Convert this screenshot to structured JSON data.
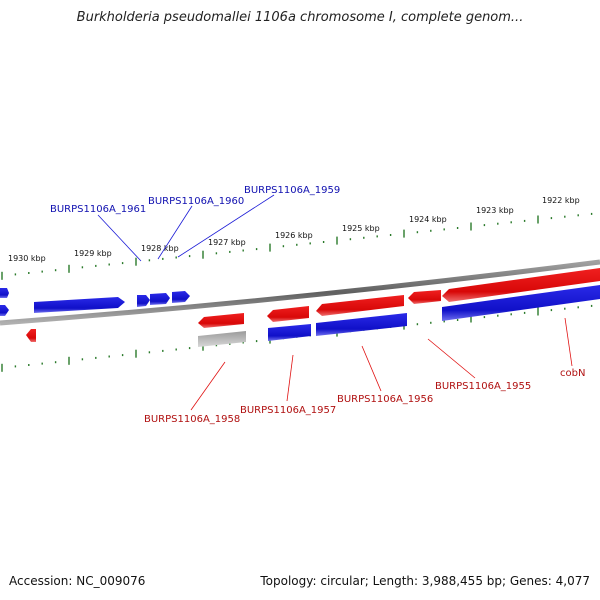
{
  "header": {
    "title": "Burkholderia pseudomallei 1106a chromosome I, complete genom..."
  },
  "footer": {
    "accession": "Accession: NC_009076",
    "topology": "Topology: circular; Length: 3,988,455 bp; Genes: 4,077"
  },
  "ruler": {
    "labels": [
      "1930 kbp",
      "1929 kbp",
      "1928 kbp",
      "1927 kbp",
      "1926 kbp",
      "1925 kbp",
      "1924 kbp",
      "1923 kbp",
      "1922 kbp"
    ]
  },
  "genes": {
    "labels": [
      {
        "name": "BURPS1106A_1961",
        "strand": "forward"
      },
      {
        "name": "BURPS1106A_1960",
        "strand": "forward"
      },
      {
        "name": "BURPS1106A_1959",
        "strand": "forward"
      },
      {
        "name": "BURPS1106A_1958",
        "strand": "reverse"
      },
      {
        "name": "BURPS1106A_1957",
        "strand": "reverse"
      },
      {
        "name": "BURPS1106A_1956",
        "strand": "reverse"
      },
      {
        "name": "BURPS1106A_1955",
        "strand": "reverse"
      },
      {
        "name": "cobN",
        "strand": "reverse"
      }
    ]
  },
  "colors": {
    "forward": "#1a1ad6",
    "reverse": "#e01010",
    "pseudo": "#b8b8b8",
    "tick": "#2a7a2a",
    "backbone": "#808080"
  }
}
